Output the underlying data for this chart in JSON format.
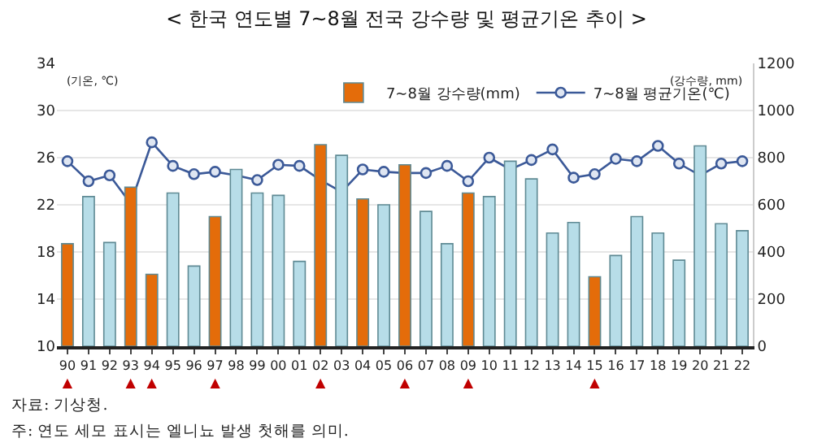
{
  "chart_data": {
    "type": "bar",
    "title": "< 한국 연도별 7~8월 전국 강수량 및 평균기온 추이 >",
    "ylabel": "(기온, ℃)",
    "y2label": "(강수량, mm)",
    "categories": [
      "90\n▲",
      "91",
      "92",
      "93\n▲",
      "94\n▲",
      "95",
      "96",
      "97\n▲",
      "98",
      "99",
      "00",
      "01",
      "02\n▲",
      "03",
      "04",
      "05",
      "06\n▲",
      "07",
      "08",
      "09\n▲",
      "10",
      "11",
      "12",
      "13",
      "14",
      "15\n▲",
      "16",
      "17",
      "18",
      "19",
      "20",
      "21",
      "22"
    ],
    "series": [
      {
        "name": "7~8월 강수량(mm)",
        "axis": "y2",
        "color": "#b7dde8",
        "colors": [
          "#e46c0a",
          "#b7dde8",
          "#b7dde8",
          "#e46c0a",
          "#e46c0a",
          "#b7dde8",
          "#b7dde8",
          "#e46c0a",
          "#b7dde8",
          "#b7dde8",
          "#b7dde8",
          "#b7dde8",
          "#e46c0a",
          "#b7dde8",
          "#e46c0a",
          "#b7dde8",
          "#e46c0a",
          "#b7dde8",
          "#b7dde8",
          "#e46c0a",
          "#b7dde8",
          "#b7dde8",
          "#b7dde8",
          "#b7dde8",
          "#b7dde8",
          "#e46c0a",
          "#b7dde8",
          "#b7dde8",
          "#b7dde8",
          "#b7dde8",
          "#b7dde8",
          "#b7dde8",
          "#b7dde8"
        ],
        "values": [
          435,
          635,
          440,
          675,
          305,
          650,
          340,
          550,
          750,
          650,
          640,
          360,
          855,
          810,
          625,
          600,
          770,
          572,
          435,
          650,
          635,
          785,
          710,
          480,
          525,
          295,
          385,
          550,
          480,
          365,
          850,
          520,
          490
        ]
      },
      {
        "name": "7~8월 평균기온(℃)",
        "type": "line",
        "axis": "y",
        "color": "#3b5998",
        "marker": "circle",
        "values": [
          25.7,
          24.0,
          24.5,
          22.1,
          27.3,
          25.3,
          24.6,
          24.8,
          24.5,
          24.1,
          25.4,
          25.3,
          24.1,
          23.1,
          25.0,
          24.8,
          24.7,
          24.7,
          25.3,
          24.0,
          26.0,
          25.0,
          25.8,
          26.7,
          24.3,
          24.6,
          25.9,
          25.7,
          27.0,
          25.5,
          24.5,
          25.5,
          25.7
        ]
      }
    ],
    "ylim": [
      10,
      34
    ],
    "yticks": [
      10,
      14,
      18,
      22,
      26,
      30,
      34
    ],
    "y2lim": [
      0,
      1200
    ],
    "y2ticks": [
      0,
      200,
      400,
      600,
      800,
      1000,
      1200
    ],
    "grid": "y",
    "legend": "top",
    "annotations": [
      "자료: 기상청.",
      "주: 연도 세모 표시는 엘니뇨 발생 첫해를 의미."
    ]
  }
}
